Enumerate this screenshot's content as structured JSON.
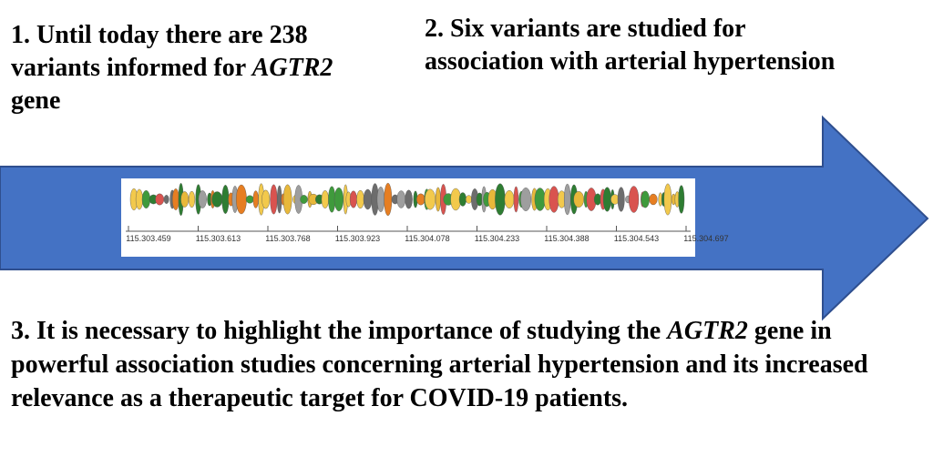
{
  "colors": {
    "arrow": "#4472c4",
    "arrow_edge": "#2f4f8f",
    "variant_palette": [
      "#f2c94c",
      "#e8b83a",
      "#3f9a3c",
      "#2e7d32",
      "#d9534f",
      "#e67e22",
      "#9e9e9e",
      "#6d6d6d"
    ]
  },
  "statements": [
    {
      "id": "s1",
      "text_before": "1. Until today there are 238 variants informed for ",
      "gene": "AGTR2",
      "text_after": " gene"
    },
    {
      "id": "s2",
      "text": "2. Six variants are studied for association with arterial hypertension"
    },
    {
      "id": "s3",
      "text_before": "3. It is necessary to highlight the importance of studying the ",
      "gene": "AGTR2",
      "text_after": " gene in powerful association studies concerning arterial hypertension and its increased relevance as a therapeutic target for COVID-19 patients."
    }
  ],
  "variant_track": {
    "ticks": [
      "115.303.459",
      "115.303.613",
      "115.303.768",
      "115.303.923",
      "115.304.078",
      "115.304.233",
      "115.304.388",
      "115.304.543",
      "115.304.697"
    ]
  }
}
